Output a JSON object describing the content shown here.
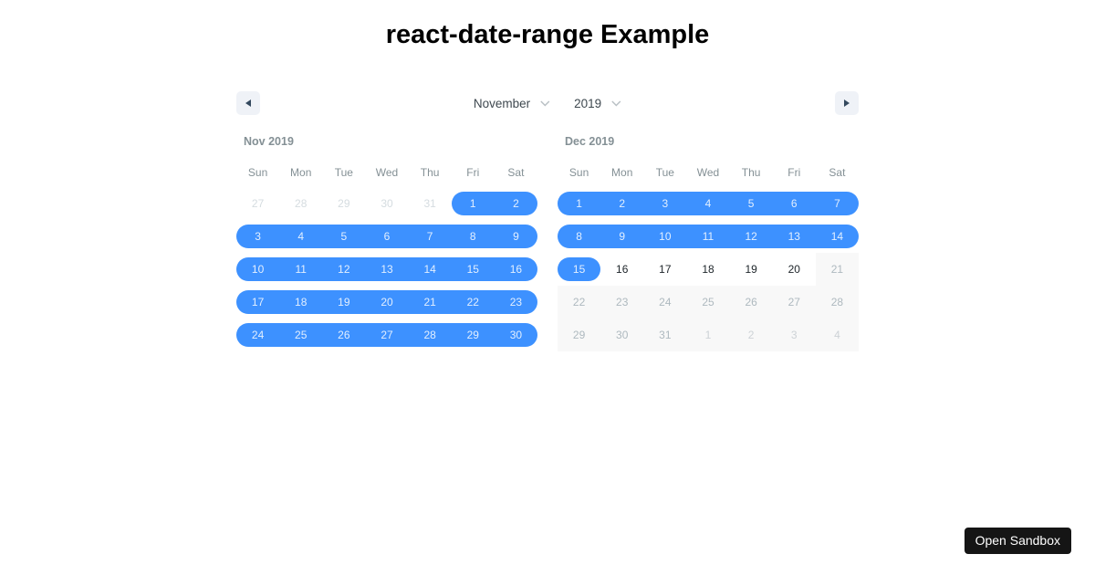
{
  "page": {
    "title": "react-date-range Example"
  },
  "colors": {
    "range_blue": "#3d91ff",
    "nav_bg": "#eff2f7",
    "nav_arrow": "#34495e",
    "select_text": "#3e484f",
    "chevron": "#b8bfc4",
    "month_label": "#849095",
    "weekday": "#849095",
    "day_normal": "#1d2429",
    "day_passive": "#d5dce0",
    "day_disabled": "#aeb9bf",
    "day_disabled_passive": "#cdd2d6",
    "disabled_bg": "#f8f8f8",
    "in_range_text": "rgba(255,255,255,0.85)",
    "sandbox_bg": "#151515",
    "sandbox_text": "#ffffff"
  },
  "header": {
    "prev_icon": "left-triangle",
    "next_icon": "right-triangle",
    "month_select": "November",
    "year_select": "2019"
  },
  "calendar": {
    "months": [
      {
        "label": "Nov 2019",
        "weekdays": [
          "Sun",
          "Mon",
          "Tue",
          "Wed",
          "Thu",
          "Fri",
          "Sat"
        ],
        "weeks": [
          [
            {
              "day": "27",
              "state": "passive"
            },
            {
              "day": "28",
              "state": "passive"
            },
            {
              "day": "29",
              "state": "passive"
            },
            {
              "day": "30",
              "state": "passive"
            },
            {
              "day": "31",
              "state": "passive"
            },
            {
              "day": "1",
              "state": "range-start"
            },
            {
              "day": "2",
              "state": "in-range"
            }
          ],
          [
            {
              "day": "3",
              "state": "in-range"
            },
            {
              "day": "4",
              "state": "in-range"
            },
            {
              "day": "5",
              "state": "in-range"
            },
            {
              "day": "6",
              "state": "in-range"
            },
            {
              "day": "7",
              "state": "in-range"
            },
            {
              "day": "8",
              "state": "in-range"
            },
            {
              "day": "9",
              "state": "in-range"
            }
          ],
          [
            {
              "day": "10",
              "state": "in-range"
            },
            {
              "day": "11",
              "state": "in-range"
            },
            {
              "day": "12",
              "state": "in-range"
            },
            {
              "day": "13",
              "state": "in-range"
            },
            {
              "day": "14",
              "state": "in-range"
            },
            {
              "day": "15",
              "state": "in-range"
            },
            {
              "day": "16",
              "state": "in-range"
            }
          ],
          [
            {
              "day": "17",
              "state": "in-range"
            },
            {
              "day": "18",
              "state": "in-range"
            },
            {
              "day": "19",
              "state": "in-range"
            },
            {
              "day": "20",
              "state": "in-range"
            },
            {
              "day": "21",
              "state": "in-range"
            },
            {
              "day": "22",
              "state": "in-range"
            },
            {
              "day": "23",
              "state": "in-range"
            }
          ],
          [
            {
              "day": "24",
              "state": "in-range"
            },
            {
              "day": "25",
              "state": "in-range"
            },
            {
              "day": "26",
              "state": "in-range"
            },
            {
              "day": "27",
              "state": "in-range"
            },
            {
              "day": "28",
              "state": "in-range"
            },
            {
              "day": "29",
              "state": "in-range"
            },
            {
              "day": "30",
              "state": "in-range"
            }
          ]
        ]
      },
      {
        "label": "Dec 2019",
        "weekdays": [
          "Sun",
          "Mon",
          "Tue",
          "Wed",
          "Thu",
          "Fri",
          "Sat"
        ],
        "weeks": [
          [
            {
              "day": "1",
              "state": "in-range"
            },
            {
              "day": "2",
              "state": "in-range"
            },
            {
              "day": "3",
              "state": "in-range"
            },
            {
              "day": "4",
              "state": "in-range"
            },
            {
              "day": "5",
              "state": "in-range"
            },
            {
              "day": "6",
              "state": "in-range"
            },
            {
              "day": "7",
              "state": "in-range"
            }
          ],
          [
            {
              "day": "8",
              "state": "in-range"
            },
            {
              "day": "9",
              "state": "in-range"
            },
            {
              "day": "10",
              "state": "in-range"
            },
            {
              "day": "11",
              "state": "in-range"
            },
            {
              "day": "12",
              "state": "in-range"
            },
            {
              "day": "13",
              "state": "in-range"
            },
            {
              "day": "14",
              "state": "in-range"
            }
          ],
          [
            {
              "day": "15",
              "state": "range-end"
            },
            {
              "day": "16",
              "state": "normal"
            },
            {
              "day": "17",
              "state": "normal"
            },
            {
              "day": "18",
              "state": "normal"
            },
            {
              "day": "19",
              "state": "normal"
            },
            {
              "day": "20",
              "state": "normal"
            },
            {
              "day": "21",
              "state": "disabled"
            }
          ],
          [
            {
              "day": "22",
              "state": "disabled"
            },
            {
              "day": "23",
              "state": "disabled"
            },
            {
              "day": "24",
              "state": "disabled"
            },
            {
              "day": "25",
              "state": "disabled"
            },
            {
              "day": "26",
              "state": "disabled"
            },
            {
              "day": "27",
              "state": "disabled"
            },
            {
              "day": "28",
              "state": "disabled"
            }
          ],
          [
            {
              "day": "29",
              "state": "disabled"
            },
            {
              "day": "30",
              "state": "disabled"
            },
            {
              "day": "31",
              "state": "disabled"
            },
            {
              "day": "1",
              "state": "disabled-passive"
            },
            {
              "day": "2",
              "state": "disabled-passive"
            },
            {
              "day": "3",
              "state": "disabled-passive"
            },
            {
              "day": "4",
              "state": "disabled-passive"
            }
          ]
        ]
      }
    ]
  },
  "sandbox": {
    "label": "Open Sandbox"
  }
}
